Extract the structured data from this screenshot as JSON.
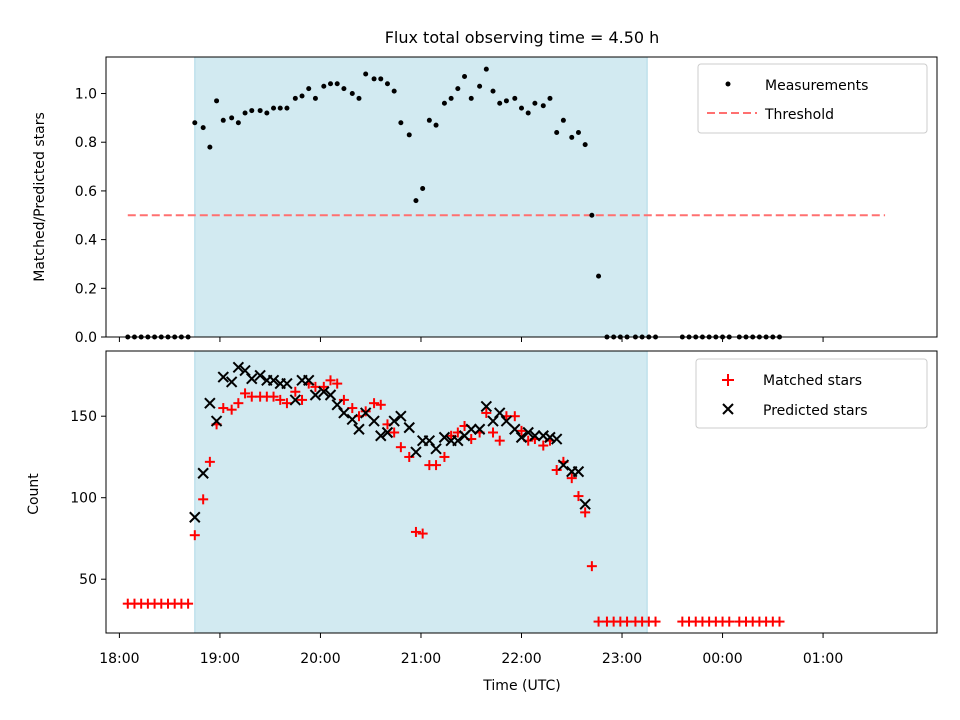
{
  "title": "Flux total observing time = 4.50 h",
  "xlabel": "Time (UTC)",
  "x_ticks": [
    "18:00",
    "19:00",
    "20:00",
    "21:00",
    "22:00",
    "23:00",
    "00:00",
    "01:00"
  ],
  "colors": {
    "observing_window": "#add8e6",
    "measurements": "#000000",
    "threshold": "#ff7070",
    "matched": "#ff0000",
    "predicted": "#000000"
  },
  "chart_data": [
    {
      "type": "scatter",
      "ylabel": "Matched/Predicted stars",
      "ylim": [
        0,
        1.15
      ],
      "yticks": [
        "0.0",
        "0.2",
        "0.4",
        "0.6",
        "0.8",
        "1.0"
      ],
      "xlim": [
        "17:52",
        "02:08"
      ],
      "observing_window": [
        "18:45",
        "23:15"
      ],
      "legend": {
        "position": "top-right",
        "measurements_label": "Measurements",
        "threshold_label": "Threshold"
      },
      "threshold": {
        "value": 0.5,
        "x_range": [
          "18:05",
          "01:37"
        ]
      },
      "series": [
        {
          "name": "Measurements",
          "points": [
            [
              "18:05",
              0
            ],
            [
              "18:09",
              0
            ],
            [
              "18:13",
              0
            ],
            [
              "18:17",
              0
            ],
            [
              "18:21",
              0
            ],
            [
              "18:25",
              0
            ],
            [
              "18:29",
              0
            ],
            [
              "18:33",
              0
            ],
            [
              "18:37",
              0
            ],
            [
              "18:41",
              0
            ],
            [
              "18:45",
              0.88
            ],
            [
              "18:50",
              0.86
            ],
            [
              "18:54",
              0.78
            ],
            [
              "18:58",
              0.97
            ],
            [
              "19:02",
              0.89
            ],
            [
              "19:07",
              0.9
            ],
            [
              "19:11",
              0.88
            ],
            [
              "19:15",
              0.92
            ],
            [
              "19:19",
              0.93
            ],
            [
              "19:24",
              0.93
            ],
            [
              "19:28",
              0.92
            ],
            [
              "19:32",
              0.94
            ],
            [
              "19:36",
              0.94
            ],
            [
              "19:40",
              0.94
            ],
            [
              "19:45",
              0.98
            ],
            [
              "19:49",
              0.99
            ],
            [
              "19:53",
              1.02
            ],
            [
              "19:57",
              0.98
            ],
            [
              "20:02",
              1.03
            ],
            [
              "20:06",
              1.04
            ],
            [
              "20:10",
              1.04
            ],
            [
              "20:14",
              1.02
            ],
            [
              "20:19",
              1.0
            ],
            [
              "20:23",
              0.98
            ],
            [
              "20:27",
              1.08
            ],
            [
              "20:32",
              1.06
            ],
            [
              "20:36",
              1.06
            ],
            [
              "20:40",
              1.04
            ],
            [
              "20:44",
              1.01
            ],
            [
              "20:48",
              0.88
            ],
            [
              "20:53",
              0.83
            ],
            [
              "20:57",
              0.56
            ],
            [
              "21:01",
              0.61
            ],
            [
              "21:05",
              0.89
            ],
            [
              "21:09",
              0.87
            ],
            [
              "21:14",
              0.96
            ],
            [
              "21:18",
              0.98
            ],
            [
              "21:22",
              1.02
            ],
            [
              "21:26",
              1.07
            ],
            [
              "21:30",
              0.98
            ],
            [
              "21:35",
              1.03
            ],
            [
              "21:39",
              1.1
            ],
            [
              "21:43",
              1.01
            ],
            [
              "21:47",
              0.96
            ],
            [
              "21:51",
              0.97
            ],
            [
              "21:56",
              0.98
            ],
            [
              "22:00",
              0.94
            ],
            [
              "22:04",
              0.92
            ],
            [
              "22:08",
              0.96
            ],
            [
              "22:13",
              0.95
            ],
            [
              "22:17",
              0.98
            ],
            [
              "22:21",
              0.84
            ],
            [
              "22:25",
              0.89
            ],
            [
              "22:30",
              0.82
            ],
            [
              "22:34",
              0.84
            ],
            [
              "22:38",
              0.79
            ],
            [
              "22:42",
              0.5
            ],
            [
              "22:46",
              0.25
            ],
            [
              "22:51",
              0
            ],
            [
              "22:55",
              0
            ],
            [
              "22:59",
              0
            ],
            [
              "23:03",
              0
            ],
            [
              "23:08",
              0
            ],
            [
              "23:12",
              0
            ],
            [
              "23:16",
              0
            ],
            [
              "23:20",
              0
            ],
            [
              "23:36",
              0
            ],
            [
              "23:40",
              0
            ],
            [
              "23:44",
              0
            ],
            [
              "23:48",
              0
            ],
            [
              "23:52",
              0
            ],
            [
              "23:56",
              0
            ],
            [
              "00:00",
              0
            ],
            [
              "00:04",
              0
            ],
            [
              "00:10",
              0
            ],
            [
              "00:14",
              0
            ],
            [
              "00:18",
              0
            ],
            [
              "00:22",
              0
            ],
            [
              "00:26",
              0
            ],
            [
              "00:30",
              0
            ],
            [
              "00:34",
              0
            ]
          ]
        }
      ]
    },
    {
      "type": "scatter",
      "ylabel": "Count",
      "ylim": [
        17,
        190
      ],
      "yticks": [
        "50",
        "100",
        "150"
      ],
      "xlim": [
        "17:52",
        "02:08"
      ],
      "observing_window": [
        "18:45",
        "23:15"
      ],
      "legend": {
        "position": "top-right",
        "matched_label": "Matched stars",
        "predicted_label": "Predicted stars"
      },
      "series": [
        {
          "name": "Matched stars",
          "points": [
            [
              "18:05",
              35
            ],
            [
              "18:09",
              35
            ],
            [
              "18:13",
              35
            ],
            [
              "18:17",
              35
            ],
            [
              "18:21",
              35
            ],
            [
              "18:25",
              35
            ],
            [
              "18:29",
              35
            ],
            [
              "18:33",
              35
            ],
            [
              "18:37",
              35
            ],
            [
              "18:41",
              35
            ],
            [
              "18:45",
              77
            ],
            [
              "18:50",
              99
            ],
            [
              "18:54",
              122
            ],
            [
              "18:58",
              145
            ],
            [
              "19:02",
              155
            ],
            [
              "19:07",
              154
            ],
            [
              "19:11",
              158
            ],
            [
              "19:15",
              164
            ],
            [
              "19:19",
              162
            ],
            [
              "19:24",
              162
            ],
            [
              "19:28",
              162
            ],
            [
              "19:32",
              162
            ],
            [
              "19:36",
              160
            ],
            [
              "19:40",
              158
            ],
            [
              "19:45",
              165
            ],
            [
              "19:49",
              160
            ],
            [
              "19:53",
              170
            ],
            [
              "19:57",
              168
            ],
            [
              "20:02",
              168
            ],
            [
              "20:06",
              172
            ],
            [
              "20:10",
              170
            ],
            [
              "20:14",
              160
            ],
            [
              "20:19",
              155
            ],
            [
              "20:23",
              150
            ],
            [
              "20:27",
              153
            ],
            [
              "20:32",
              158
            ],
            [
              "20:36",
              157
            ],
            [
              "20:40",
              145
            ],
            [
              "20:44",
              140
            ],
            [
              "20:48",
              131
            ],
            [
              "20:53",
              125
            ],
            [
              "20:57",
              79
            ],
            [
              "21:01",
              78
            ],
            [
              "21:05",
              120
            ],
            [
              "21:09",
              120
            ],
            [
              "21:14",
              125
            ],
            [
              "21:18",
              138
            ],
            [
              "21:22",
              140
            ],
            [
              "21:26",
              144
            ],
            [
              "21:30",
              136
            ],
            [
              "21:35",
              140
            ],
            [
              "21:39",
              152
            ],
            [
              "21:43",
              140
            ],
            [
              "21:47",
              135
            ],
            [
              "21:51",
              150
            ],
            [
              "21:56",
              150
            ],
            [
              "22:00",
              141
            ],
            [
              "22:04",
              135
            ],
            [
              "22:08",
              136
            ],
            [
              "22:13",
              132
            ],
            [
              "22:17",
              135
            ],
            [
              "22:21",
              117
            ],
            [
              "22:25",
              122
            ],
            [
              "22:30",
              112
            ],
            [
              "22:34",
              101
            ],
            [
              "22:38",
              91
            ],
            [
              "22:42",
              58
            ],
            [
              "22:46",
              24
            ],
            [
              "22:51",
              24
            ],
            [
              "22:55",
              24
            ],
            [
              "22:59",
              24
            ],
            [
              "23:03",
              24
            ],
            [
              "23:08",
              24
            ],
            [
              "23:12",
              24
            ],
            [
              "23:16",
              24
            ],
            [
              "23:20",
              24
            ],
            [
              "23:36",
              24
            ],
            [
              "23:40",
              24
            ],
            [
              "23:44",
              24
            ],
            [
              "23:48",
              24
            ],
            [
              "23:52",
              24
            ],
            [
              "23:56",
              24
            ],
            [
              "00:00",
              24
            ],
            [
              "00:04",
              24
            ],
            [
              "00:10",
              24
            ],
            [
              "00:14",
              24
            ],
            [
              "00:18",
              24
            ],
            [
              "00:22",
              24
            ],
            [
              "00:26",
              24
            ],
            [
              "00:30",
              24
            ],
            [
              "00:34",
              24
            ]
          ]
        },
        {
          "name": "Predicted stars",
          "points": [
            [
              "18:45",
              88
            ],
            [
              "18:50",
              115
            ],
            [
              "18:54",
              158
            ],
            [
              "18:58",
              147
            ],
            [
              "19:02",
              174
            ],
            [
              "19:07",
              171
            ],
            [
              "19:11",
              180
            ],
            [
              "19:15",
              178
            ],
            [
              "19:19",
              173
            ],
            [
              "19:24",
              175
            ],
            [
              "19:28",
              172
            ],
            [
              "19:32",
              172
            ],
            [
              "19:36",
              170
            ],
            [
              "19:40",
              170
            ],
            [
              "19:45",
              160
            ],
            [
              "19:49",
              172
            ],
            [
              "19:53",
              172
            ],
            [
              "19:57",
              163
            ],
            [
              "20:02",
              165
            ],
            [
              "20:06",
              163
            ],
            [
              "20:10",
              157
            ],
            [
              "20:14",
              152
            ],
            [
              "20:19",
              148
            ],
            [
              "20:23",
              142
            ],
            [
              "20:27",
              152
            ],
            [
              "20:32",
              147
            ],
            [
              "20:36",
              138
            ],
            [
              "20:40",
              140
            ],
            [
              "20:44",
              147
            ],
            [
              "20:48",
              150
            ],
            [
              "20:53",
              143
            ],
            [
              "20:57",
              128
            ],
            [
              "21:01",
              135
            ],
            [
              "21:05",
              135
            ],
            [
              "21:09",
              130
            ],
            [
              "21:14",
              137
            ],
            [
              "21:18",
              135
            ],
            [
              "21:22",
              135
            ],
            [
              "21:26",
              138
            ],
            [
              "21:30",
              142
            ],
            [
              "21:35",
              142
            ],
            [
              "21:39",
              156
            ],
            [
              "21:43",
              147
            ],
            [
              "21:47",
              152
            ],
            [
              "21:51",
              147
            ],
            [
              "21:56",
              142
            ],
            [
              "22:00",
              137
            ],
            [
              "22:04",
              140
            ],
            [
              "22:08",
              138
            ],
            [
              "22:13",
              138
            ],
            [
              "22:17",
              137
            ],
            [
              "22:21",
              136
            ],
            [
              "22:25",
              120
            ],
            [
              "22:30",
              116
            ],
            [
              "22:34",
              116
            ],
            [
              "22:38",
              96
            ]
          ]
        }
      ]
    }
  ]
}
